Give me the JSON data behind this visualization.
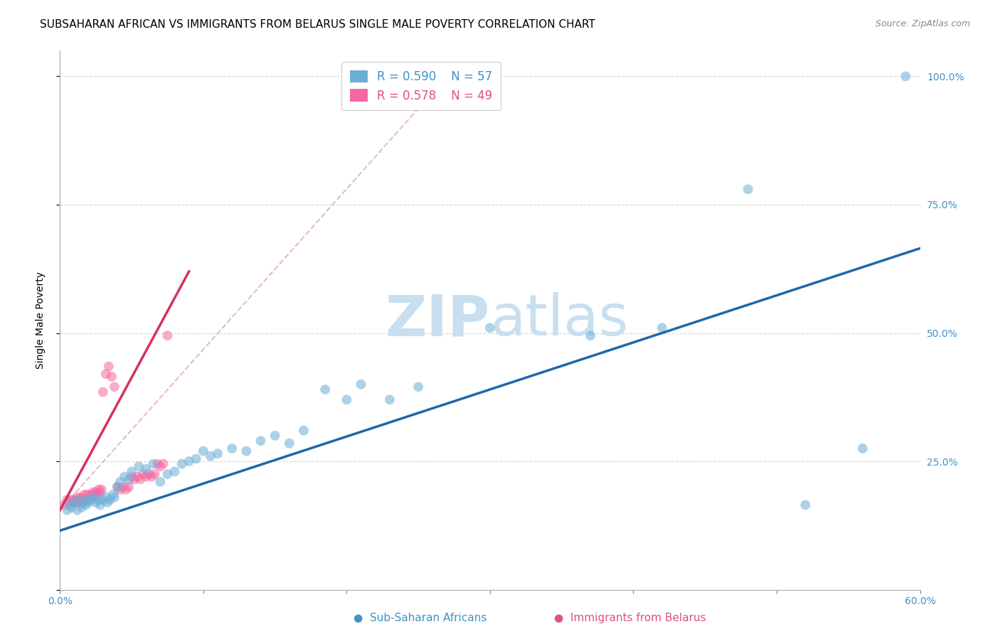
{
  "title": "SUBSAHARAN AFRICAN VS IMMIGRANTS FROM BELARUS SINGLE MALE POVERTY CORRELATION CHART",
  "source": "Source: ZipAtlas.com",
  "xlabel_blue": "Sub-Saharan Africans",
  "xlabel_pink": "Immigrants from Belarus",
  "ylabel": "Single Male Poverty",
  "xlim": [
    0.0,
    0.6
  ],
  "ylim": [
    0.0,
    1.05
  ],
  "xticks": [
    0.0,
    0.1,
    0.2,
    0.3,
    0.4,
    0.5,
    0.6
  ],
  "ytick_vals": [
    0.0,
    0.25,
    0.5,
    0.75,
    1.0
  ],
  "ytick_labels": [
    "",
    "25.0%",
    "50.0%",
    "75.0%",
    "100.0%"
  ],
  "xtick_labels": [
    "0.0%",
    "",
    "",
    "",
    "",
    "",
    "60.0%"
  ],
  "legend_blue_R": "R = 0.590",
  "legend_blue_N": "N = 57",
  "legend_pink_R": "R = 0.578",
  "legend_pink_N": "N = 49",
  "blue_color": "#6baed6",
  "pink_color": "#f768a1",
  "blue_line_color": "#2166ac",
  "pink_line_color": "#d6325a",
  "pink_dashed_color": "#d6a0b0",
  "grid_color": "#cccccc",
  "text_color_blue": "#4292c6",
  "text_color_pink": "#e05080",
  "blue_scatter_x": [
    0.005,
    0.007,
    0.008,
    0.01,
    0.012,
    0.013,
    0.015,
    0.016,
    0.018,
    0.019,
    0.02,
    0.022,
    0.023,
    0.025,
    0.027,
    0.028,
    0.03,
    0.032,
    0.033,
    0.035,
    0.037,
    0.038,
    0.04,
    0.042,
    0.045,
    0.048,
    0.05,
    0.055,
    0.06,
    0.065,
    0.07,
    0.075,
    0.08,
    0.085,
    0.09,
    0.095,
    0.1,
    0.105,
    0.11,
    0.12,
    0.13,
    0.14,
    0.15,
    0.16,
    0.17,
    0.185,
    0.2,
    0.21,
    0.23,
    0.25,
    0.3,
    0.37,
    0.42,
    0.48,
    0.52,
    0.56,
    0.59
  ],
  "blue_scatter_y": [
    0.155,
    0.165,
    0.16,
    0.17,
    0.155,
    0.175,
    0.16,
    0.17,
    0.165,
    0.175,
    0.17,
    0.175,
    0.18,
    0.17,
    0.175,
    0.165,
    0.175,
    0.18,
    0.17,
    0.175,
    0.185,
    0.18,
    0.2,
    0.21,
    0.22,
    0.215,
    0.23,
    0.24,
    0.235,
    0.245,
    0.21,
    0.225,
    0.23,
    0.245,
    0.25,
    0.255,
    0.27,
    0.26,
    0.265,
    0.275,
    0.27,
    0.29,
    0.3,
    0.285,
    0.31,
    0.39,
    0.37,
    0.4,
    0.37,
    0.395,
    0.51,
    0.495,
    0.51,
    0.78,
    0.165,
    0.275,
    1.0
  ],
  "pink_scatter_x": [
    0.003,
    0.005,
    0.006,
    0.007,
    0.008,
    0.009,
    0.01,
    0.011,
    0.012,
    0.013,
    0.014,
    0.015,
    0.016,
    0.017,
    0.018,
    0.019,
    0.02,
    0.021,
    0.022,
    0.023,
    0.024,
    0.025,
    0.026,
    0.027,
    0.028,
    0.029,
    0.03,
    0.032,
    0.034,
    0.036,
    0.038,
    0.04,
    0.042,
    0.044,
    0.046,
    0.048,
    0.05,
    0.052,
    0.054,
    0.056,
    0.058,
    0.06,
    0.062,
    0.064,
    0.066,
    0.068,
    0.07,
    0.072,
    0.075
  ],
  "pink_scatter_y": [
    0.165,
    0.175,
    0.17,
    0.175,
    0.17,
    0.175,
    0.17,
    0.175,
    0.18,
    0.17,
    0.175,
    0.18,
    0.17,
    0.185,
    0.175,
    0.185,
    0.175,
    0.185,
    0.18,
    0.19,
    0.185,
    0.19,
    0.185,
    0.195,
    0.19,
    0.195,
    0.385,
    0.42,
    0.435,
    0.415,
    0.395,
    0.2,
    0.195,
    0.2,
    0.195,
    0.2,
    0.22,
    0.215,
    0.22,
    0.215,
    0.225,
    0.22,
    0.225,
    0.22,
    0.225,
    0.245,
    0.24,
    0.245,
    0.495
  ],
  "blue_line_x": [
    0.0,
    0.6
  ],
  "blue_line_y": [
    0.115,
    0.665
  ],
  "pink_line_x": [
    0.0,
    0.09
  ],
  "pink_line_y": [
    0.155,
    0.62
  ],
  "pink_dashed_line_x": [
    0.0,
    0.27
  ],
  "pink_dashed_line_y": [
    0.155,
    1.0
  ],
  "watermark_zip": "ZIP",
  "watermark_atlas": "atlas",
  "watermark_color": "#c8dff0",
  "background_color": "#ffffff",
  "title_fontsize": 11,
  "axis_label_fontsize": 10,
  "tick_fontsize": 10,
  "legend_fontsize": 12,
  "source_fontsize": 9
}
